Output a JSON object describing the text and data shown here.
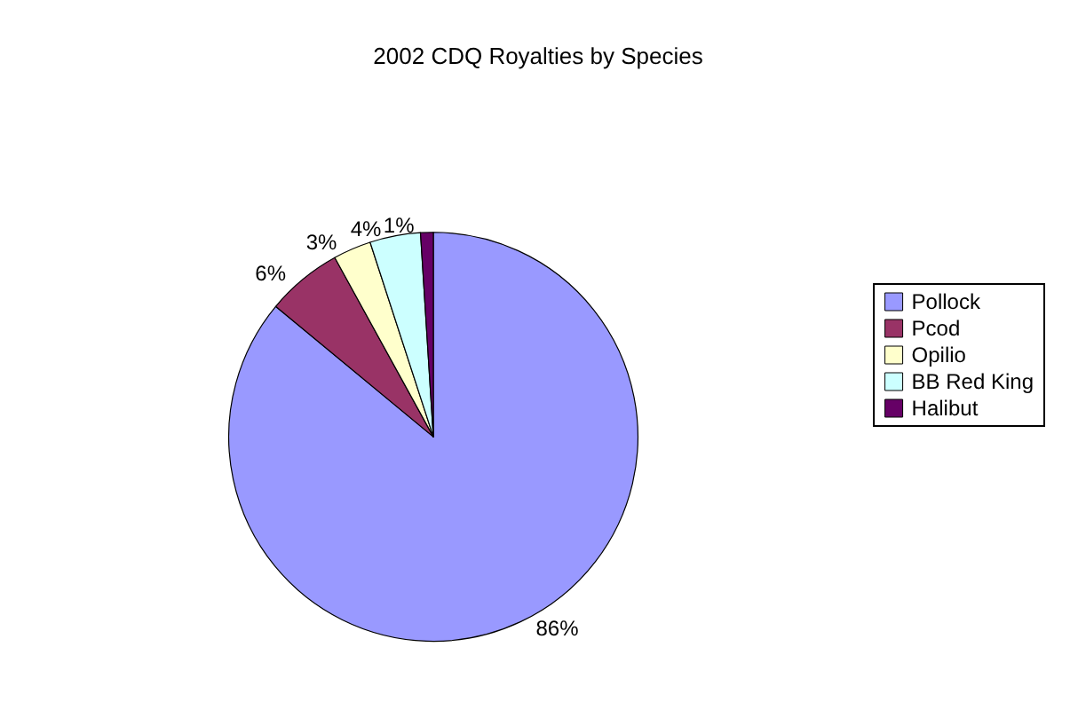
{
  "chart_data": {
    "type": "pie",
    "title": "2002 CDQ Royalties by Species",
    "categories": [
      "Pollock",
      "Pcod",
      "Opilio",
      "BB Red King",
      "Halibut"
    ],
    "values": [
      86,
      6,
      3,
      4,
      1
    ],
    "colors": [
      "#9999ff",
      "#993366",
      "#ffffcc",
      "#ccffff",
      "#660066"
    ],
    "value_labels": [
      "86%",
      "6%",
      "3%",
      "4%",
      "1%"
    ],
    "legend": "right"
  }
}
